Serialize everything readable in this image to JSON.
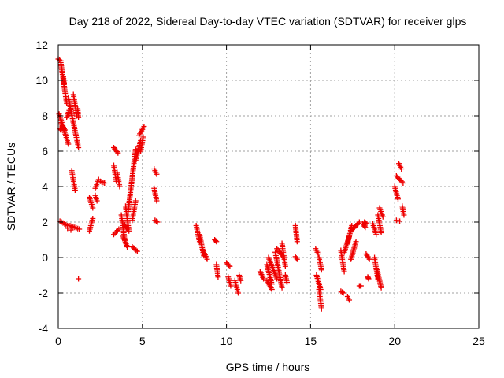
{
  "chart_data": {
    "type": "scatter",
    "title": "Day 218 of 2022, Sidereal Day-to-day VTEC variation (SDTVAR) for receiver glps",
    "xlabel": "GPS time / hours",
    "ylabel": "SDTVAR / TECUs",
    "xlim": [
      0,
      25
    ],
    "ylim": [
      -4,
      12
    ],
    "xticks": [
      0,
      5,
      10,
      15,
      20,
      25
    ],
    "yticks": [
      -4,
      -2,
      0,
      2,
      4,
      6,
      8,
      10,
      12
    ],
    "grid": true,
    "marker": "+",
    "color": "#ee0000",
    "segments": [
      [
        0.0,
        11.2,
        0.15,
        11.1
      ],
      [
        0.15,
        11.0,
        0.5,
        8.7
      ],
      [
        0.3,
        10.2,
        0.35,
        9.8
      ],
      [
        0.05,
        8.1,
        0.6,
        6.4
      ],
      [
        0.15,
        7.6,
        0.4,
        7.2
      ],
      [
        0.1,
        7.3,
        0.15,
        7.2
      ],
      [
        0.5,
        7.9,
        0.65,
        8.3
      ],
      [
        0.6,
        9.0,
        1.2,
        6.2
      ],
      [
        0.9,
        9.2,
        1.1,
        8.0
      ],
      [
        1.15,
        8.4,
        1.2,
        7.9
      ],
      [
        0.1,
        2.05,
        0.55,
        1.8
      ],
      [
        0.7,
        1.8,
        1.25,
        1.6
      ],
      [
        0.8,
        4.9,
        1.0,
        3.8
      ],
      [
        1.85,
        3.4,
        2.05,
        2.8
      ],
      [
        1.85,
        1.5,
        2.05,
        2.2
      ],
      [
        2.2,
        3.5,
        2.3,
        3.2
      ],
      [
        2.2,
        3.9,
        2.4,
        4.4
      ],
      [
        2.5,
        4.3,
        2.75,
        4.2
      ],
      [
        3.3,
        6.2,
        3.55,
        5.9
      ],
      [
        3.3,
        5.2,
        3.45,
        4.3
      ],
      [
        3.5,
        4.8,
        3.65,
        4.0
      ],
      [
        3.3,
        1.3,
        3.6,
        1.6
      ],
      [
        3.75,
        2.4,
        3.95,
        1.0
      ],
      [
        3.85,
        1.2,
        4.1,
        0.6
      ],
      [
        3.9,
        1.9,
        4.1,
        1.6
      ],
      [
        4.0,
        2.9,
        4.2,
        1.5
      ],
      [
        4.15,
        2.6,
        4.6,
        6.1
      ],
      [
        4.4,
        2.1,
        4.6,
        3.2
      ],
      [
        4.6,
        5.5,
        4.9,
        6.6
      ],
      [
        4.4,
        0.6,
        4.7,
        0.35
      ],
      [
        4.8,
        6.9,
        5.1,
        7.4
      ],
      [
        4.9,
        6.0,
        5.05,
        6.8
      ],
      [
        5.7,
        5.0,
        5.85,
        4.7
      ],
      [
        5.7,
        3.9,
        5.85,
        3.2
      ],
      [
        5.75,
        2.1,
        5.9,
        2.0
      ],
      [
        8.2,
        1.8,
        8.4,
        0.9
      ],
      [
        8.4,
        1.3,
        8.65,
        0.1
      ],
      [
        8.6,
        0.4,
        8.85,
        -0.1
      ],
      [
        9.3,
        1.0,
        9.4,
        0.9
      ],
      [
        9.4,
        -0.4,
        9.5,
        -1.1
      ],
      [
        10.0,
        -0.3,
        10.2,
        -0.5
      ],
      [
        10.1,
        -1.1,
        10.25,
        -1.6
      ],
      [
        10.5,
        -1.3,
        10.7,
        -2.0
      ],
      [
        10.75,
        -1.0,
        10.85,
        -1.3
      ],
      [
        12.0,
        -0.8,
        12.2,
        -1.2
      ],
      [
        12.4,
        -1.3,
        12.7,
        -1.8
      ],
      [
        12.4,
        -0.4,
        12.7,
        -1.5
      ],
      [
        12.5,
        0.0,
        13.0,
        -1.2
      ],
      [
        12.9,
        0.3,
        13.3,
        -1.7
      ],
      [
        13.0,
        0.5,
        13.4,
        0.0
      ],
      [
        13.3,
        0.8,
        13.5,
        -0.5
      ],
      [
        13.5,
        -1.0,
        13.6,
        -1.4
      ],
      [
        14.1,
        1.8,
        14.2,
        0.9
      ],
      [
        14.1,
        0.05,
        14.2,
        -0.1
      ],
      [
        15.3,
        0.5,
        15.45,
        0.2
      ],
      [
        15.35,
        -1.0,
        15.6,
        -1.8
      ],
      [
        15.5,
        -1.8,
        15.65,
        -2.9
      ],
      [
        15.5,
        0.0,
        15.65,
        -0.7
      ],
      [
        16.8,
        0.4,
        17.0,
        -0.8
      ],
      [
        16.8,
        -1.9,
        16.95,
        -2.0
      ],
      [
        17.2,
        -2.2,
        17.3,
        -2.4
      ],
      [
        17.0,
        0.3,
        17.3,
        1.2
      ],
      [
        17.2,
        0.8,
        17.45,
        1.8
      ],
      [
        17.4,
        1.5,
        17.9,
        2.0
      ],
      [
        17.4,
        -0.1,
        17.7,
        0.9
      ],
      [
        17.9,
        -1.6,
        18.0,
        -1.6
      ],
      [
        18.1,
        1.9,
        18.25,
        1.7
      ],
      [
        18.2,
        2.0,
        18.35,
        1.9
      ],
      [
        18.3,
        0.2,
        18.5,
        -0.1
      ],
      [
        18.4,
        -1.1,
        18.45,
        -1.2
      ],
      [
        18.7,
        1.9,
        18.9,
        1.3
      ],
      [
        18.8,
        0.0,
        19.0,
        -1.2
      ],
      [
        18.95,
        -0.7,
        19.2,
        -1.7
      ],
      [
        19.0,
        2.4,
        19.2,
        1.4
      ],
      [
        19.1,
        2.8,
        19.3,
        2.3
      ],
      [
        20.0,
        4.0,
        20.2,
        3.3
      ],
      [
        20.1,
        4.6,
        20.5,
        4.2
      ],
      [
        20.1,
        2.1,
        20.3,
        2.05
      ],
      [
        20.25,
        5.3,
        20.4,
        5.0
      ],
      [
        20.45,
        2.9,
        20.55,
        2.4
      ]
    ],
    "points": [
      [
        1.2,
        -1.2
      ],
      [
        0.55,
        1.65
      ],
      [
        0.75,
        1.55
      ]
    ]
  }
}
